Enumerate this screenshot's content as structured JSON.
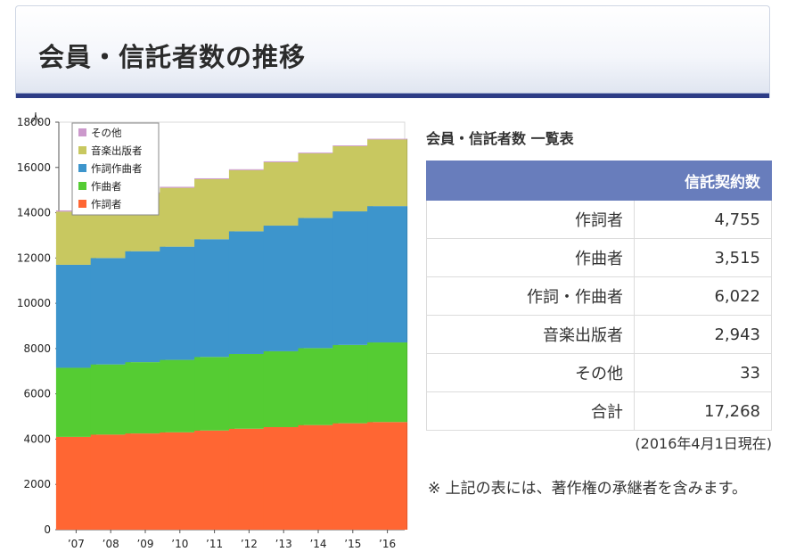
{
  "header": {
    "title": "会員・信託者数の推移"
  },
  "chart_data": {
    "type": "bar",
    "stacked": true,
    "ylabel": "人",
    "ylim": [
      0,
      18000
    ],
    "ytick_step": 2000,
    "categories": [
      "’07",
      "’08",
      "’09",
      "’10",
      "’11",
      "’12",
      "’13",
      "’14",
      "’15",
      "’16"
    ],
    "series": [
      {
        "name": "作詞者",
        "color": "#ff6633",
        "values": [
          4100,
          4200,
          4250,
          4300,
          4380,
          4460,
          4530,
          4620,
          4700,
          4755
        ]
      },
      {
        "name": "作曲者",
        "color": "#55cc33",
        "values": [
          3050,
          3100,
          3150,
          3200,
          3250,
          3300,
          3350,
          3400,
          3460,
          3515
        ]
      },
      {
        "name": "作詞作曲者",
        "color": "#3d95cc",
        "values": [
          4550,
          4700,
          4900,
          5000,
          5200,
          5420,
          5550,
          5750,
          5900,
          6022
        ]
      },
      {
        "name": "音楽出版者",
        "color": "#c8c860",
        "values": [
          2350,
          2450,
          2550,
          2600,
          2650,
          2700,
          2800,
          2850,
          2880,
          2943
        ]
      },
      {
        "name": "その他",
        "color": "#cc99cc",
        "values": [
          50,
          50,
          50,
          45,
          40,
          40,
          40,
          35,
          35,
          33
        ]
      }
    ],
    "legend_order": [
      "その他",
      "音楽出版者",
      "作詞作曲者",
      "作曲者",
      "作詞者"
    ],
    "legend_position": "top-left",
    "grid": false
  },
  "table": {
    "title": "会員・信託者数 一覧表",
    "header": "信託契約数",
    "rows": [
      {
        "label": "作詞者",
        "value": "4,755"
      },
      {
        "label": "作曲者",
        "value": "3,515"
      },
      {
        "label": "作詞・作曲者",
        "value": "6,022"
      },
      {
        "label": "音楽出版者",
        "value": "2,943"
      },
      {
        "label": "その他",
        "value": "33"
      },
      {
        "label": "合計",
        "value": "17,268"
      }
    ],
    "as_of": "(2016年4月1日現在)"
  },
  "note": "※ 上記の表には、著作権の承継者を含みます。"
}
